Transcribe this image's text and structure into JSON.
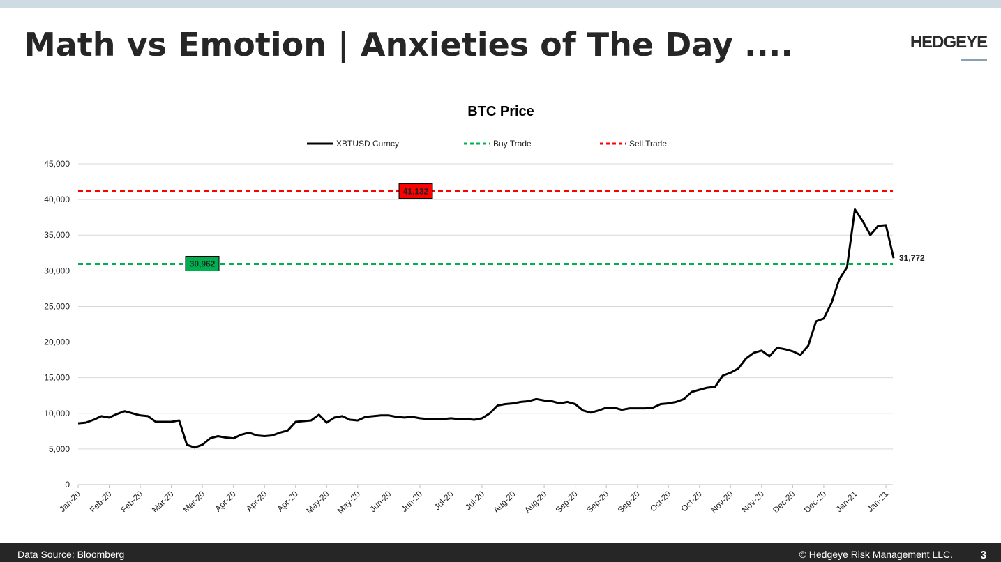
{
  "page": {
    "title": "Math vs Emotion | Anxieties of The Day ....",
    "logo": "HEDGEYE",
    "source": "Data Source: Bloomberg",
    "copyright": "© Hedgeye Risk Management LLC.",
    "page_number": "3"
  },
  "chart_data": {
    "type": "line",
    "title": "BTC Price",
    "categories": [
      "Jan-20",
      null,
      null,
      null,
      "Feb-20",
      null,
      null,
      null,
      "Feb-20",
      null,
      null,
      null,
      "Mar-20",
      null,
      null,
      null,
      "Mar-20",
      null,
      null,
      null,
      "Apr-20",
      null,
      null,
      null,
      "Apr-20",
      null,
      null,
      null,
      "Apr-20",
      null,
      null,
      null,
      "May-20",
      null,
      null,
      null,
      "May-20",
      null,
      null,
      null,
      "Jun-20",
      null,
      null,
      null,
      "Jun-20",
      null,
      null,
      null,
      "Jul-20",
      null,
      null,
      null,
      "Jul-20",
      null,
      null,
      null,
      "Aug-20",
      null,
      null,
      null,
      "Aug-20",
      null,
      null,
      null,
      "Sep-20",
      null,
      null,
      null,
      "Sep-20",
      null,
      null,
      null,
      "Sep-20",
      null,
      null,
      null,
      "Oct-20",
      null,
      null,
      null,
      "Oct-20",
      null,
      null,
      null,
      "Nov-20",
      null,
      null,
      null,
      "Nov-20",
      null,
      null,
      null,
      "Dec-20",
      null,
      null,
      null,
      "Dec-20",
      null,
      null,
      null,
      "Jan-21",
      null,
      null,
      null,
      "Jan-21",
      null
    ],
    "series": [
      {
        "name": "XBTUSD Curncy",
        "color": "#000000",
        "last_value_label": "31,772",
        "values": [
          8600,
          8700,
          9100,
          9600,
          9400,
          9900,
          10300,
          10000,
          9700,
          9600,
          8800,
          8800,
          8800,
          9000,
          5600,
          5200,
          5600,
          6500,
          6800,
          6600,
          6500,
          7000,
          7300,
          6900,
          6800,
          6900,
          7300,
          7600,
          8800,
          8900,
          9000,
          9800,
          8700,
          9400,
          9600,
          9100,
          9000,
          9500,
          9600,
          9700,
          9700,
          9500,
          9400,
          9500,
          9300,
          9200,
          9200,
          9200,
          9300,
          9200,
          9200,
          9100,
          9300,
          10000,
          11100,
          11300,
          11400,
          11600,
          11700,
          12000,
          11800,
          11700,
          11400,
          11600,
          11300,
          10400,
          10100,
          10400,
          10800,
          10800,
          10500,
          10700,
          10700,
          10700,
          10800,
          11300,
          11400,
          11600,
          12000,
          13000,
          13300,
          13600,
          13700,
          15300,
          15700,
          16300,
          17700,
          18500,
          18800,
          18000,
          19200,
          19000,
          18700,
          18200,
          19500,
          22900,
          23300,
          25500,
          28800,
          30500,
          38600,
          37000,
          35000,
          36300,
          36400,
          31772
        ]
      },
      {
        "name": "Buy Trade",
        "color": "#00b050",
        "value": 30962,
        "value_label": "30,962"
      },
      {
        "name": "Sell Trade",
        "color": "#ff0000",
        "value": 41132,
        "value_label": "41,132"
      }
    ],
    "ylim": [
      0,
      45000
    ],
    "yticks": [
      0,
      {
        "value": 5000,
        "label": "5,000"
      },
      {
        "value": 10000,
        "label": "10,000"
      },
      {
        "value": 15000,
        "label": "15,000"
      },
      {
        "value": 20000,
        "label": "20,000"
      },
      {
        "value": 25000,
        "label": "25,000"
      },
      {
        "value": 30000,
        "label": "30,000"
      },
      {
        "value": 35000,
        "label": "35,000"
      },
      {
        "value": 40000,
        "label": "40,000"
      },
      {
        "value": 45000,
        "label": "45,000"
      }
    ],
    "grid": true
  }
}
